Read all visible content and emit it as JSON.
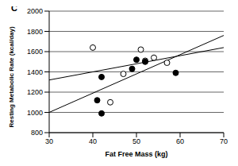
{
  "chart_data": {
    "type": "scatter",
    "title": "C",
    "x_label": "Fat Free Mass (kg)",
    "y_label": "Resting Metabolic Rate (kcal/day)",
    "xlim": [
      30,
      70
    ],
    "xticks": [
      30,
      40,
      50,
      60,
      70
    ],
    "ylim": [
      800,
      2000
    ],
    "yticks": [
      800,
      1000,
      1200,
      1400,
      1600,
      1800,
      2000
    ],
    "grid": true,
    "series": [
      {
        "marker": "circle-open",
        "color": "#000000",
        "x": [
          40,
          44,
          47,
          51,
          52,
          54,
          57
        ],
        "y": [
          1640,
          1100,
          1380,
          1620,
          1510,
          1540,
          1490
        ]
      },
      {
        "marker": "circle-filled",
        "color": "#000000",
        "x": [
          41,
          42,
          42,
          49,
          50,
          52,
          59
        ],
        "y": [
          1120,
          1350,
          990,
          1430,
          1520,
          1500,
          1390
        ]
      }
    ],
    "lines": [
      {
        "color": "#000000",
        "x": [
          30,
          70
        ],
        "y": [
          1000,
          1760
        ]
      },
      {
        "color": "#000000",
        "x": [
          30,
          70
        ],
        "y": [
          1320,
          1640
        ]
      }
    ]
  }
}
